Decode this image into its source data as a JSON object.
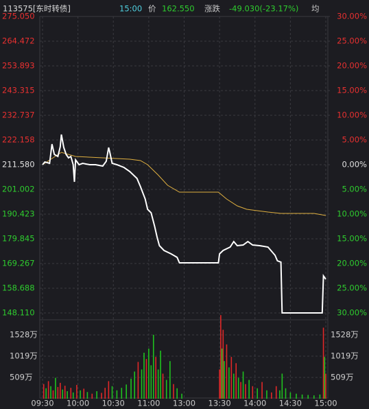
{
  "chart_data": {
    "type": "line",
    "code": "113575[东时转债]",
    "time": "15:00",
    "price_label": "价",
    "price": "162.550",
    "change_label": "涨跌",
    "change": "-49.030(-23.17%)",
    "avg_label": "均",
    "xlim": [
      0,
      240
    ],
    "xticks": [
      {
        "value": 0,
        "label": "09:30"
      },
      {
        "value": 30,
        "label": "10:00"
      },
      {
        "value": 60,
        "label": "10:30"
      },
      {
        "value": 90,
        "label": "11:00"
      },
      {
        "value": 120,
        "label": "13:00"
      },
      {
        "value": 150,
        "label": "13:30"
      },
      {
        "value": 180,
        "label": "14:00"
      },
      {
        "value": 210,
        "label": "14:30"
      },
      {
        "value": 240,
        "label": "15:00"
      }
    ],
    "ylim": [
      148.11,
      275.05
    ],
    "yticks": [
      {
        "value": 275.05,
        "label": "275.050"
      },
      264.472,
      253.893,
      243.315,
      232.737,
      222.158,
      {
        "value": 211.58,
        "label": "211.580"
      },
      201.002,
      190.423,
      179.845,
      169.267,
      158.688,
      {
        "value": 148.11,
        "label": "148.110"
      }
    ],
    "y2lim": [
      -30,
      30
    ],
    "y2ticks": [
      {
        "value": 30,
        "label": "30.00%"
      },
      {
        "value": 25,
        "label": "25.00%"
      },
      {
        "value": 20,
        "label": "20.00%"
      },
      {
        "value": 15,
        "label": "15.00%"
      },
      {
        "value": 10,
        "label": "10.00%"
      },
      {
        "value": 5,
        "label": "5.00%"
      },
      {
        "value": 0,
        "label": "0.00%"
      },
      {
        "value": -5,
        "label": "5.00%"
      },
      {
        "value": -10,
        "label": "10.00%"
      },
      {
        "value": -15,
        "label": "15.00%"
      },
      {
        "value": -20,
        "label": "20.00%"
      },
      {
        "value": -25,
        "label": "25.00%"
      },
      {
        "value": -30,
        "label": "30.00%"
      }
    ],
    "grid": true,
    "series": [
      {
        "color": "#ffffff",
        "x": [
          0,
          2,
          6,
          8,
          10,
          13,
          15,
          16,
          18,
          20,
          22,
          24,
          26,
          27,
          28,
          31,
          34,
          40,
          45,
          51,
          54,
          56,
          57,
          59,
          63,
          69,
          74,
          80,
          83,
          87,
          89,
          92,
          95,
          97,
          99,
          103,
          109,
          114,
          116,
          121,
          138,
          149,
          150,
          153,
          159,
          162,
          165,
          170,
          174,
          178,
          184,
          191,
          197,
          199,
          202,
          203,
          237,
          238,
          240
        ],
        "values": [
          211.58,
          212.76,
          212.17,
          220.39,
          215.99,
          215.11,
          219.22,
          224.51,
          218.93,
          215.99,
          214.52,
          215.11,
          211.58,
          204.23,
          213.64,
          211.58,
          212.17,
          211.58,
          211.58,
          210.99,
          213.05,
          218.93,
          216.87,
          212.17,
          211.58,
          210.4,
          208.64,
          205.7,
          202.18,
          196.89,
          192.48,
          191.01,
          185.13,
          180.73,
          176.91,
          174.85,
          173.38,
          171.91,
          169.56,
          169.56,
          169.56,
          169.56,
          173.38,
          174.85,
          176.32,
          178.67,
          176.91,
          177.2,
          178.67,
          177.2,
          176.91,
          176.32,
          172.79,
          170.44,
          169.85,
          148.11,
          148.11,
          163.98,
          162.55
        ]
      },
      {
        "color": "#e0b040",
        "x": [
          0,
          16,
          28,
          51,
          74,
          83,
          89,
          98,
          106,
          116,
          149,
          156,
          165,
          173,
          191,
          202,
          230,
          240
        ],
        "values": [
          211.58,
          216.87,
          215.11,
          214.52,
          213.93,
          213.34,
          211.58,
          207.17,
          202.77,
          199.83,
          199.83,
          196.89,
          193.95,
          192.48,
          191.3,
          190.72,
          190.72,
          189.84
        ]
      }
    ],
    "volume": {
      "ylim": [
        0,
        2020
      ],
      "yticks": [
        {
          "value": 1528,
          "label": "1528万"
        },
        {
          "value": 1019,
          "label": "1019万"
        },
        {
          "value": 509,
          "label": "509万"
        }
      ],
      "x": [
        1,
        3,
        5,
        7,
        9,
        11,
        13,
        15,
        17,
        19,
        21,
        24,
        26,
        29,
        32,
        35,
        38,
        42,
        46,
        50,
        53,
        56,
        59,
        63,
        67,
        71,
        75,
        78,
        81,
        84,
        86,
        88,
        90,
        92,
        94,
        96,
        98,
        100,
        102,
        105,
        108,
        111,
        114,
        118,
        150,
        151,
        152,
        153,
        154,
        156,
        158,
        160,
        162,
        164,
        166,
        168,
        170,
        172,
        175,
        178,
        182,
        186,
        190,
        194,
        198,
        201,
        203,
        206,
        210,
        215,
        220,
        225,
        230,
        235,
        238,
        239,
        240
      ],
      "values": [
        350,
        250,
        420,
        300,
        200,
        500,
        280,
        380,
        220,
        310,
        180,
        260,
        150,
        330,
        200,
        240,
        160,
        120,
        180,
        140,
        260,
        420,
        300,
        200,
        260,
        340,
        480,
        650,
        880,
        700,
        1100,
        950,
        1200,
        800,
        1530,
        1000,
        700,
        1150,
        600,
        450,
        900,
        350,
        250,
        120,
        700,
        2000,
        1200,
        1650,
        900,
        1300,
        750,
        1000,
        600,
        850,
        500,
        400,
        650,
        350,
        450,
        300,
        250,
        400,
        200,
        150,
        300,
        200,
        600,
        250,
        150,
        120,
        100,
        90,
        80,
        100,
        1700,
        1000,
        600
      ],
      "colors": [
        "#e02828",
        "#1fc21f",
        "#e02828",
        "#1fc21f",
        "#e02828",
        "#1fc21f",
        "#e02828",
        "#e02828",
        "#1fc21f",
        "#e02828",
        "#1fc21f",
        "#e02828",
        "#1fc21f",
        "#e02828",
        "#1fc21f",
        "#e02828",
        "#1fc21f",
        "#e02828",
        "#1fc21f",
        "#e02828",
        "#e02828",
        "#e02828",
        "#1fc21f",
        "#1fc21f",
        "#1fc21f",
        "#1fc21f",
        "#1fc21f",
        "#1fc21f",
        "#e02828",
        "#1fc21f",
        "#1fc21f",
        "#e02828",
        "#1fc21f",
        "#1fc21f",
        "#1fc21f",
        "#e02828",
        "#1fc21f",
        "#1fc21f",
        "#e02828",
        "#1fc21f",
        "#1fc21f",
        "#e02828",
        "#1fc21f",
        "#1fc21f",
        "#e02828",
        "#e02828",
        "#1fc21f",
        "#e02828",
        "#1fc21f",
        "#e02828",
        "#1fc21f",
        "#e02828",
        "#1fc21f",
        "#e02828",
        "#1fc21f",
        "#e02828",
        "#1fc21f",
        "#e02828",
        "#1fc21f",
        "#e02828",
        "#1fc21f",
        "#e02828",
        "#1fc21f",
        "#e02828",
        "#e02828",
        "#1fc21f",
        "#1fc21f",
        "#1fc21f",
        "#1fc21f",
        "#1fc21f",
        "#1fc21f",
        "#1fc21f",
        "#1fc21f",
        "#1fc21f",
        "#e02828",
        "#1fc21f",
        "#e02828"
      ]
    }
  }
}
